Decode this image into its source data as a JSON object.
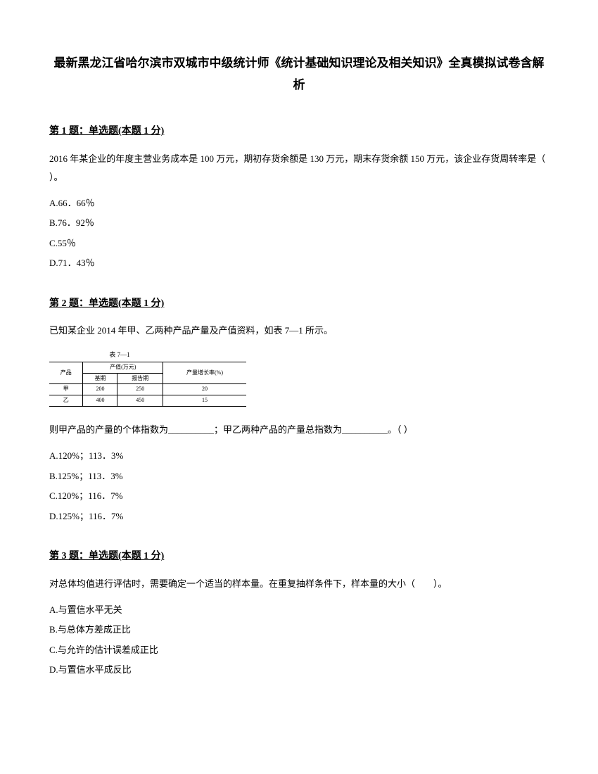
{
  "title": "最新黑龙江省哈尔滨市双城市中级统计师《统计基础知识理论及相关知识》全真模拟试卷含解析",
  "questions": [
    {
      "header": "第 1 题：单选题(本题 1 分)",
      "text": "2016 年某企业的年度主营业务成本是 100 万元，期初存货余额是 130 万元，期末存货余额 150 万元，该企业存货周转率是（ ）。",
      "options": [
        "A.66．66％",
        "B.76．92％",
        "C.55％",
        "D.71．43％"
      ]
    },
    {
      "header": "第 2 题：单选题(本题 1 分)",
      "text": "已知某企业 2014 年甲、乙两种产品产量及产值资料，如表 7—1 所示。",
      "text2": "则甲产品的产量的个体指数为__________；甲乙两种产品的产量总指数为__________。（ ）",
      "options": [
        "A.120%；113．3%",
        "B.125%；113．3%",
        "C.120%；116．7%",
        "D.125%；116．7%"
      ],
      "table": {
        "title": "表 7—1",
        "header1": "产品",
        "header2": "产值(万元)",
        "header3": "产量增长率(%)",
        "col1": "基期",
        "col2": "报告期",
        "rows": [
          [
            "甲",
            "200",
            "250",
            "20"
          ],
          [
            "乙",
            "400",
            "450",
            "15"
          ]
        ]
      }
    },
    {
      "header": "第 3 题：单选题(本题 1 分)",
      "text": "对总体均值进行评估时，需要确定一个适当的样本量。在重复抽样条件下，样本量的大小（　　）。",
      "options": [
        "A.与置信水平无关",
        "B.与总体方差成正比",
        "C.与允许的估计误差成正比",
        "D.与置信水平成反比"
      ]
    }
  ]
}
